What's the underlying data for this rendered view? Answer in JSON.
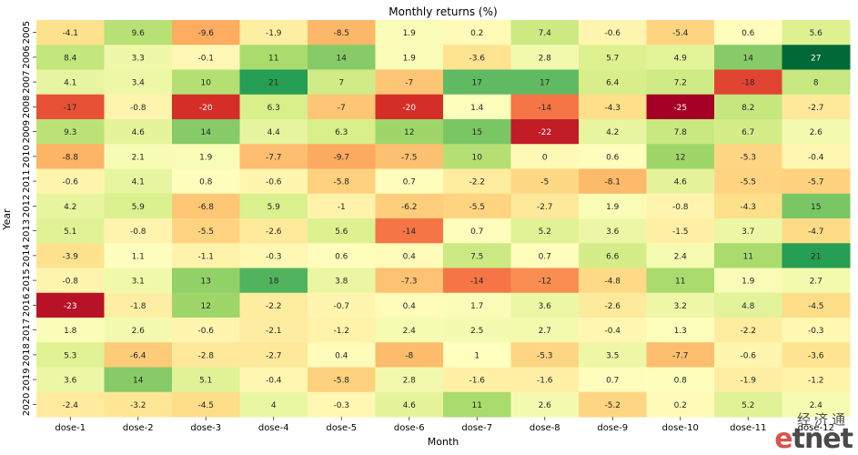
{
  "chart_data": {
    "type": "heatmap",
    "title": "Monthly returns (%)",
    "xlabel": "Month",
    "ylabel": "Year",
    "x_categories": [
      "dose-1",
      "dose-2",
      "dose-3",
      "dose-4",
      "dose-5",
      "dose-6",
      "dose-7",
      "dose-8",
      "dose-9",
      "dose-10",
      "dose-11",
      "dose-12"
    ],
    "y_categories": [
      "2005",
      "2006",
      "2007",
      "2008",
      "2009",
      "2010",
      "2011",
      "2012",
      "2013",
      "2014",
      "2015",
      "2016",
      "2017",
      "2018",
      "2019",
      "2020"
    ],
    "values": [
      [
        -4.1,
        9.6,
        -9.6,
        -1.9,
        -8.5,
        1.9,
        0.2,
        7.4,
        -0.6,
        -5.4,
        0.6,
        5.6
      ],
      [
        8.4,
        3.3,
        -0.1,
        11,
        14,
        1.9,
        -3.6,
        2.8,
        5.7,
        4.9,
        14,
        27
      ],
      [
        4.1,
        3.4,
        10,
        21,
        7,
        -7,
        17,
        17,
        6.4,
        7.2,
        -18,
        8
      ],
      [
        -17,
        -0.8,
        -20,
        6.3,
        -7,
        -20,
        1.4,
        -14,
        -4.3,
        -25,
        8.2,
        -2.7
      ],
      [
        9.3,
        4.6,
        14,
        4.4,
        6.3,
        12,
        15,
        -22,
        4.2,
        7.8,
        6.7,
        2.6
      ],
      [
        -8.8,
        2.1,
        1.9,
        -7.7,
        -9.7,
        -7.5,
        10,
        0,
        0.6,
        12,
        -5.3,
        -0.4
      ],
      [
        -0.6,
        4.1,
        0.8,
        -0.6,
        -5.8,
        0.7,
        -2.2,
        -5,
        -8.1,
        4.6,
        -5.5,
        -5.7
      ],
      [
        4.2,
        5.9,
        -6.8,
        5.9,
        -1,
        -6.2,
        -5.5,
        -2.7,
        1.9,
        -0.8,
        -4.3,
        15
      ],
      [
        5.1,
        -0.8,
        -5.5,
        -2.6,
        5.6,
        -14,
        0.7,
        5.2,
        3.6,
        -1.5,
        3.7,
        -4.7
      ],
      [
        -3.9,
        1.1,
        -1.1,
        -0.3,
        0.6,
        0.4,
        7.5,
        0.7,
        6.6,
        2.4,
        11,
        21
      ],
      [
        -0.8,
        3.1,
        13,
        18,
        3.8,
        -7.3,
        -14,
        -12,
        -4.8,
        11,
        1.9,
        2.7
      ],
      [
        -23,
        -1.8,
        12,
        -2.2,
        -0.7,
        0.4,
        1.7,
        3.6,
        -2.6,
        3.2,
        4.8,
        -4.5
      ],
      [
        1.8,
        2.6,
        -0.6,
        -2.1,
        -1.2,
        2.4,
        2.5,
        2.7,
        -0.4,
        1.3,
        -2.2,
        -0.3
      ],
      [
        5.3,
        -6.4,
        -2.8,
        -2.7,
        0.4,
        -8,
        1,
        -5.3,
        3.5,
        -7.7,
        -0.6,
        -3.6
      ],
      [
        3.6,
        14,
        5.1,
        -0.4,
        -5.8,
        2.8,
        -1.6,
        -1.6,
        0.7,
        0.8,
        -1.9,
        -1.2
      ],
      [
        -2.4,
        -3.2,
        -4.5,
        4,
        -0.3,
        4.6,
        11,
        2.6,
        -5.2,
        0.2,
        5.2,
        2.4
      ]
    ],
    "colormap": "RdYlGn",
    "vmin": -25,
    "vmax": 27,
    "grid": false,
    "legend": "none"
  },
  "logo": {
    "cn": "经济通",
    "en_e": "e",
    "en_rest": "tnet"
  }
}
